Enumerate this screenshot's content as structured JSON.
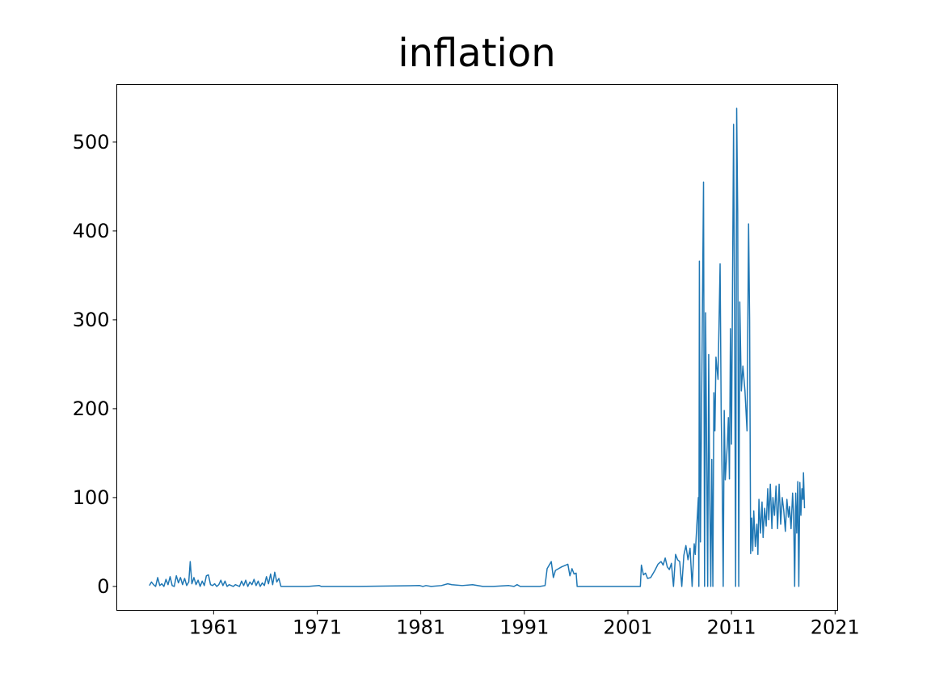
{
  "chart_data": {
    "type": "line",
    "title": "inflation",
    "series": [
      {
        "name": "inflation",
        "color": "#1f77b4",
        "x": [
          1954.8,
          1955.0,
          1955.2,
          1955.4,
          1955.6,
          1955.8,
          1956.0,
          1956.2,
          1956.4,
          1956.6,
          1956.8,
          1957.0,
          1957.2,
          1957.4,
          1957.6,
          1957.8,
          1958.0,
          1958.2,
          1958.4,
          1958.6,
          1958.74,
          1958.9,
          1959.1,
          1959.3,
          1959.5,
          1959.7,
          1959.9,
          1960.1,
          1960.3,
          1960.5,
          1960.7,
          1960.9,
          1961.1,
          1961.3,
          1961.5,
          1961.7,
          1961.9,
          1962.1,
          1962.3,
          1962.5,
          1962.7,
          1962.9,
          1963.1,
          1963.3,
          1963.5,
          1963.7,
          1963.9,
          1964.1,
          1964.3,
          1964.5,
          1964.7,
          1964.9,
          1965.1,
          1965.3,
          1965.5,
          1965.7,
          1965.9,
          1966.1,
          1966.3,
          1966.5,
          1966.7,
          1966.9,
          1967.1,
          1967.3,
          1967.5,
          1968,
          1970,
          1971.2,
          1971.4,
          1973,
          1975,
          1980.9,
          1981.2,
          1981.5,
          1982,
          1983,
          1983.6,
          1984,
          1985,
          1986,
          1987,
          1988,
          1989.5,
          1990,
          1990.3,
          1990.6,
          1992.5,
          1993.0,
          1993.2,
          1993.6,
          1993.8,
          1994.0,
          1994.3,
          1994.6,
          1995.2,
          1995.4,
          1995.6,
          1995.8,
          1996.0,
          1996.1,
          2002.2,
          2002.3,
          2002.5,
          2002.7,
          2002.9,
          2003.2,
          2003.6,
          2003.9,
          2004.2,
          2004.4,
          2004.6,
          2004.8,
          2005.0,
          2005.2,
          2005.4,
          2005.6,
          2005.8,
          2006.0,
          2006.2,
          2006.4,
          2006.6,
          2006.8,
          2007.0,
          2007.2,
          2007.4,
          2007.5,
          2007.8,
          2007.85,
          2007.9,
          2008.0,
          2008.3,
          2008.4,
          2008.5,
          2008.6,
          2008.7,
          2008.8,
          2008.9,
          2009.0,
          2009.1,
          2009.2,
          2009.3,
          2009.4,
          2009.5,
          2009.7,
          2009.9,
          2010.0,
          2010.1,
          2010.2,
          2010.3,
          2010.4,
          2010.6,
          2010.7,
          2010.8,
          2010.9,
          2011.0,
          2011.2,
          2011.3,
          2011.4,
          2011.5,
          2011.6,
          2011.7,
          2011.8,
          2011.95,
          2012.1,
          2012.3,
          2012.5,
          2012.65,
          2012.75,
          2012.85,
          2012.95,
          2013.05,
          2013.15,
          2013.3,
          2013.45,
          2013.55,
          2013.65,
          2013.8,
          2013.95,
          2014.05,
          2014.2,
          2014.35,
          2014.5,
          2014.6,
          2014.75,
          2014.9,
          2015.0,
          2015.15,
          2015.3,
          2015.45,
          2015.6,
          2015.75,
          2015.9,
          2016.05,
          2016.2,
          2016.35,
          2016.5,
          2016.6,
          2016.75,
          2016.9,
          2017.0,
          2017.1,
          2017.2,
          2017.3,
          2017.4,
          2017.5,
          2017.6,
          2017.7,
          2017.8,
          2017.9,
          2017.95,
          2018.05
        ],
        "values": [
          1,
          5,
          2,
          0,
          10,
          1,
          3,
          0,
          8,
          2,
          11,
          1,
          0,
          12,
          4,
          10,
          2,
          9,
          1,
          5,
          28,
          3,
          10,
          2,
          7,
          0,
          6,
          1,
          12,
          13,
          2,
          1,
          3,
          0,
          2,
          7,
          1,
          6,
          0,
          2,
          1,
          0,
          2,
          1,
          0,
          6,
          1,
          7,
          0,
          5,
          2,
          8,
          1,
          6,
          0,
          4,
          1,
          11,
          3,
          14,
          2,
          16,
          5,
          9,
          0,
          0,
          0,
          1,
          0,
          0,
          0,
          1,
          0,
          1,
          0,
          1,
          3,
          2,
          1,
          2,
          0,
          0,
          1,
          0,
          2,
          0,
          0,
          1,
          20,
          28,
          10,
          18,
          20,
          22,
          25,
          12,
          20,
          14,
          15,
          0,
          0,
          24,
          13,
          15,
          9,
          10,
          18,
          25,
          28,
          24,
          32,
          22,
          19,
          26,
          0,
          36,
          30,
          28,
          0,
          35,
          46,
          30,
          43,
          0,
          48,
          36,
          100,
          0,
          366,
          50,
          455,
          0,
          308,
          150,
          0,
          261,
          100,
          0,
          143,
          0,
          218,
          175,
          258,
          233,
          363,
          200,
          120,
          0,
          198,
          120,
          160,
          190,
          121,
          290,
          160,
          520,
          300,
          0,
          538,
          420,
          0,
          320,
          220,
          248,
          220,
          175,
          408,
          300,
          37,
          77,
          40,
          85,
          45,
          70,
          36,
          98,
          60,
          95,
          55,
          88,
          68,
          110,
          75,
          115,
          65,
          100,
          80,
          113,
          65,
          115,
          70,
          100,
          85,
          62,
          98,
          78,
          90,
          65,
          105,
          80,
          0,
          105,
          60,
          118,
          0,
          117,
          80,
          110,
          98,
          128,
          88
        ]
      }
    ],
    "xlim": [
      1951.65,
      2021.25
    ],
    "ylim": [
      -26.9,
      564.9
    ],
    "xticks": [
      1961,
      1971,
      1981,
      1991,
      2001,
      2011,
      2021
    ],
    "yticks": [
      0,
      100,
      200,
      300,
      400,
      500
    ]
  }
}
